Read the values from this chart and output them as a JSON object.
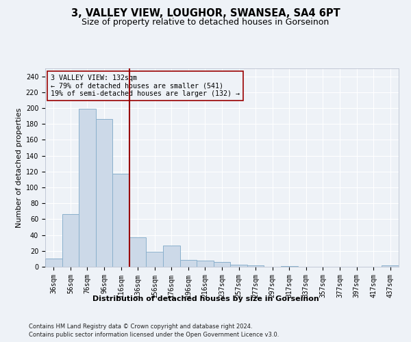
{
  "title": "3, VALLEY VIEW, LOUGHOR, SWANSEA, SA4 6PT",
  "subtitle": "Size of property relative to detached houses in Gorseinon",
  "xlabel_bottom": "Distribution of detached houses by size in Gorseinon",
  "ylabel": "Number of detached properties",
  "footer_line1": "Contains HM Land Registry data © Crown copyright and database right 2024.",
  "footer_line2": "Contains public sector information licensed under the Open Government Licence v3.0.",
  "bin_labels": [
    "36sqm",
    "56sqm",
    "76sqm",
    "96sqm",
    "116sqm",
    "136sqm",
    "156sqm",
    "176sqm",
    "196sqm",
    "216sqm",
    "237sqm",
    "257sqm",
    "277sqm",
    "297sqm",
    "317sqm",
    "337sqm",
    "357sqm",
    "377sqm",
    "397sqm",
    "417sqm",
    "437sqm"
  ],
  "bar_values": [
    10,
    66,
    199,
    186,
    117,
    37,
    19,
    27,
    9,
    8,
    6,
    3,
    2,
    0,
    1,
    0,
    0,
    0,
    0,
    0,
    2
  ],
  "bar_color": "#ccd9e8",
  "bar_edgecolor": "#8ab0cc",
  "vline_color": "#990000",
  "annotation_text": "3 VALLEY VIEW: 132sqm\n← 79% of detached houses are smaller (541)\n19% of semi-detached houses are larger (132) →",
  "annotation_box_edgecolor": "#990000",
  "ylim": [
    0,
    250
  ],
  "yticks": [
    0,
    20,
    40,
    60,
    80,
    100,
    120,
    140,
    160,
    180,
    200,
    220,
    240
  ],
  "background_color": "#eef2f7",
  "grid_color": "#ffffff",
  "title_fontsize": 10.5,
  "subtitle_fontsize": 9,
  "axis_fontsize": 8,
  "tick_fontsize": 7,
  "footer_fontsize": 6
}
